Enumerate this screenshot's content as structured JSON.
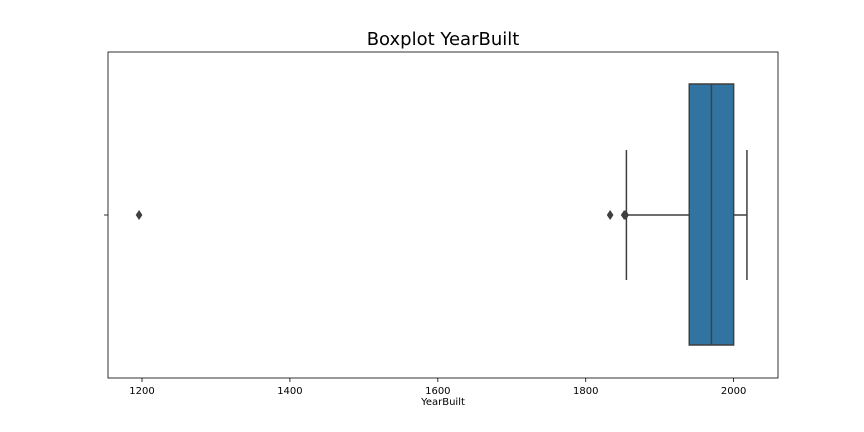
{
  "chart_data": {
    "type": "box",
    "title": "Boxplot YearBuilt",
    "xlabel": "YearBuilt",
    "ylabel": "",
    "orientation": "horizontal",
    "xlim": [
      1154,
      2060
    ],
    "xticks": [
      1200,
      1400,
      1600,
      1800,
      2000
    ],
    "xtick_labels": [
      "1200",
      "1400",
      "1600",
      "1800",
      "2000"
    ],
    "box": {
      "whisker_low": 1855,
      "q1": 1940,
      "median": 1970,
      "q3": 2000,
      "whisker_high": 2018
    },
    "outliers": [
      1196,
      1833,
      1852,
      1854
    ],
    "grid": false,
    "legend": "none",
    "colors": {
      "box_fill": "#3274a1",
      "lines": "#3f3f3f",
      "axis": "#000000"
    }
  }
}
